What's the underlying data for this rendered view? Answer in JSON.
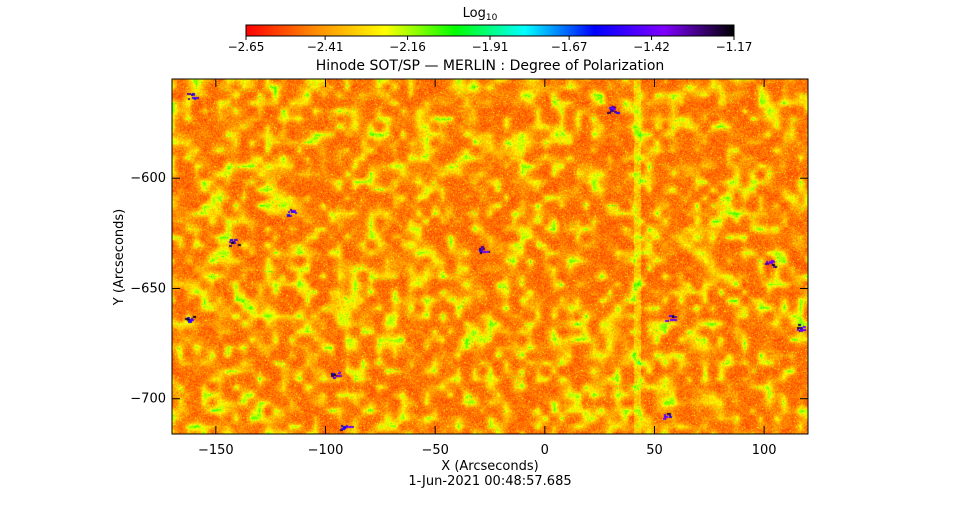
{
  "chart_data": {
    "type": "heatmap",
    "title": "Hinode SOT/SP — MERLIN : Degree of Polarization",
    "xlabel": "X (Arcseconds)",
    "ylabel": "Y (Arcseconds)",
    "xlim": [
      -170,
      120
    ],
    "ylim": [
      -716,
      -555
    ],
    "x_ticks": [
      -150,
      -100,
      -50,
      0,
      50,
      100
    ],
    "x_tick_labels": [
      "−150",
      "−100",
      "−50",
      "0",
      "50",
      "100"
    ],
    "y_ticks": [
      -600,
      -650,
      -700
    ],
    "y_tick_labels": [
      "−600",
      "−650",
      "−700"
    ],
    "timestamp": "1-Jun-2021 00:48:57.685",
    "colorbar": {
      "label_base": "Log",
      "label_sub": "10",
      "range": [
        -2.65,
        -1.17
      ],
      "tick_values": [
        -2.65,
        -2.41,
        -2.16,
        -1.91,
        -1.67,
        -1.42,
        -1.17
      ],
      "tick_labels": [
        "−2.65",
        "−2.41",
        "−2.16",
        "−1.91",
        "−1.67",
        "−1.42",
        "−1.17"
      ],
      "colors": [
        "#ff0000",
        "#ff8c00",
        "#ffff00",
        "#00ff00",
        "#00ffff",
        "#0000ff",
        "#8000ff",
        "#000000"
      ]
    },
    "grid": false
  }
}
